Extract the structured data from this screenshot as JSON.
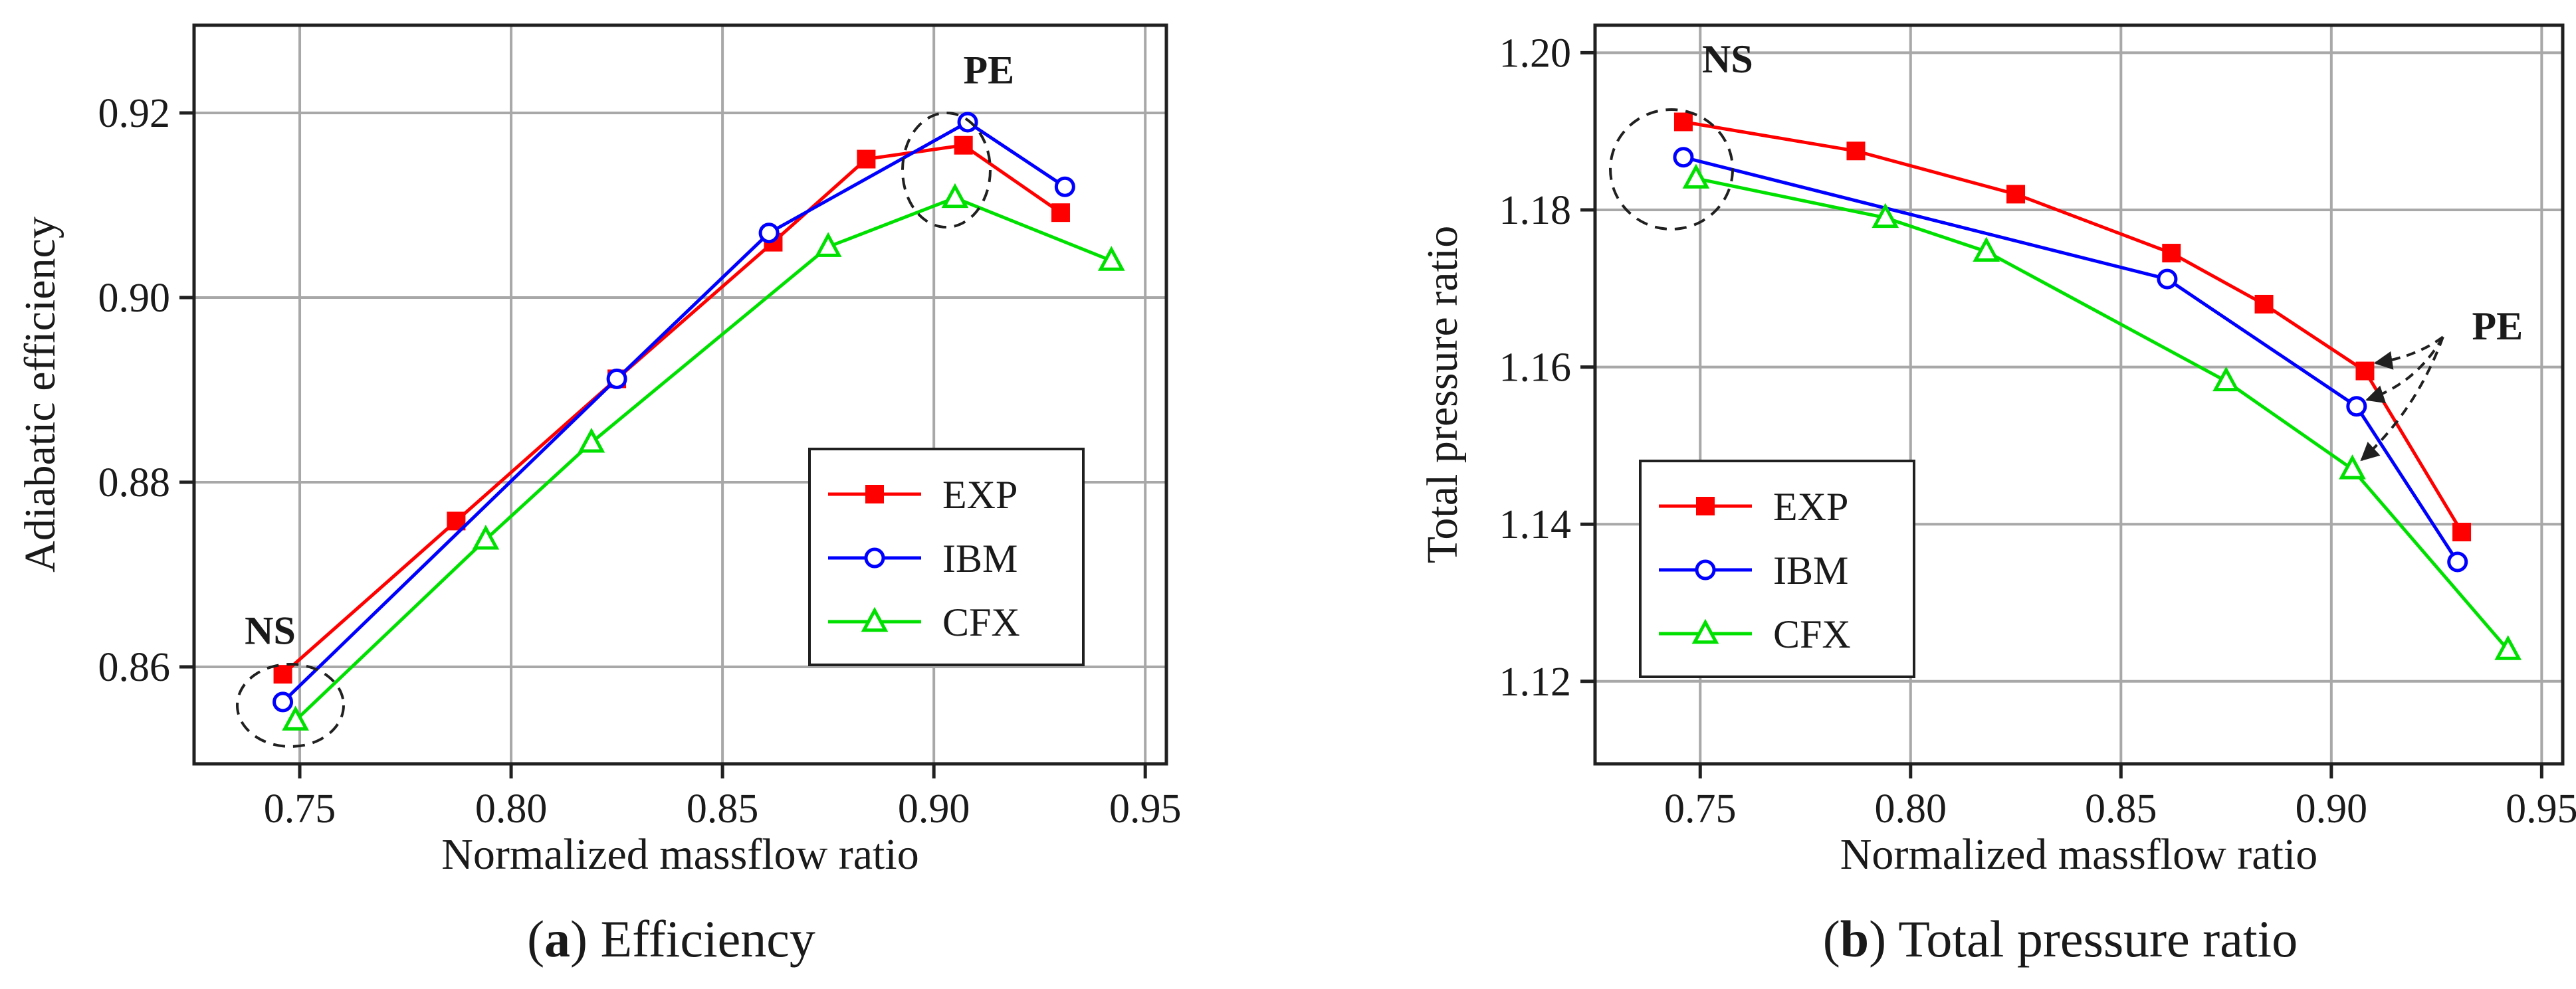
{
  "colors": {
    "EXP": "#ff0000",
    "IBM": "#0000ff",
    "CFX": "#00e000"
  },
  "chart_data": [
    {
      "type": "line",
      "caption_letter": "a",
      "caption_rest": " Efficiency",
      "xlabel": "Normalized massflow ratio",
      "ylabel": "Adiabatic efficiency",
      "xlim": [
        0.725,
        0.955
      ],
      "ylim": [
        0.8495,
        0.9295
      ],
      "xticks": [
        0.75,
        0.8,
        0.85,
        0.9,
        0.95
      ],
      "xtick_labels": [
        "0.75",
        "0.80",
        "0.85",
        "0.90",
        "0.95"
      ],
      "yticks": [
        0.86,
        0.88,
        0.9,
        0.92
      ],
      "ytick_labels": [
        "0.86",
        "0.88",
        "0.90",
        "0.92"
      ],
      "grid": true,
      "legend_position": "right",
      "series": [
        {
          "name": "EXP",
          "marker": "square",
          "x": [
            0.746,
            0.787,
            0.825,
            0.862,
            0.884,
            0.907,
            0.93
          ],
          "y": [
            0.8592,
            0.8758,
            0.8912,
            0.906,
            0.915,
            0.9165,
            0.9092
          ]
        },
        {
          "name": "IBM",
          "marker": "circle",
          "x": [
            0.746,
            0.825,
            0.861,
            0.908,
            0.931
          ],
          "y": [
            0.8562,
            0.8912,
            0.907,
            0.919,
            0.912
          ]
        },
        {
          "name": "CFX",
          "marker": "triangle",
          "x": [
            0.749,
            0.794,
            0.819,
            0.875,
            0.905,
            0.942
          ],
          "y": [
            0.8542,
            0.8738,
            0.8843,
            0.9055,
            0.9108,
            0.904
          ]
        }
      ],
      "annotations": [
        {
          "text": "NS",
          "x": 0.743,
          "y": 0.8625
        },
        {
          "text": "PE",
          "x": 0.913,
          "y": 0.9232
        }
      ]
    },
    {
      "type": "line",
      "caption_letter": "b",
      "caption_rest": " Total pressure ratio",
      "xlabel": "Normalized massflow ratio",
      "ylabel": "Total pressure ratio",
      "xlim": [
        0.725,
        0.955
      ],
      "ylim": [
        1.1095,
        1.2035
      ],
      "xticks": [
        0.75,
        0.8,
        0.85,
        0.9,
        0.95
      ],
      "xtick_labels": [
        "0.75",
        "0.80",
        "0.85",
        "0.90",
        "0.95"
      ],
      "yticks": [
        1.12,
        1.14,
        1.16,
        1.18,
        1.2
      ],
      "ytick_labels": [
        "1.12",
        "1.14",
        "1.16",
        "1.18",
        "1.20"
      ],
      "grid": true,
      "legend_position": "left",
      "series": [
        {
          "name": "EXP",
          "marker": "square",
          "x": [
            0.746,
            0.787,
            0.825,
            0.862,
            0.884,
            0.908,
            0.931
          ],
          "y": [
            1.1912,
            1.1875,
            1.182,
            1.1745,
            1.168,
            1.1595,
            1.139
          ]
        },
        {
          "name": "IBM",
          "marker": "circle",
          "x": [
            0.746,
            0.861,
            0.906,
            0.93
          ],
          "y": [
            1.1867,
            1.1712,
            1.155,
            1.1352
          ]
        },
        {
          "name": "CFX",
          "marker": "triangle",
          "x": [
            0.749,
            0.794,
            0.818,
            0.875,
            0.905,
            0.942
          ],
          "y": [
            1.184,
            1.179,
            1.1747,
            1.1582,
            1.147,
            1.124
          ]
        }
      ],
      "annotations": [
        {
          "text": "NS",
          "x": 0.7565,
          "y": 1.1975
        },
        {
          "text": "PE",
          "x": 0.9395,
          "y": 1.1635
        }
      ]
    }
  ]
}
